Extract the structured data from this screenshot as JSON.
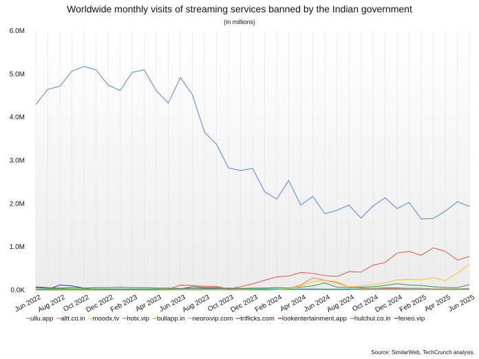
{
  "chart_data": {
    "type": "line",
    "title": "Worldwide monthly visits of streaming services banned by the Indian government",
    "subtitle": "(in millions)",
    "source": "Source: SimilarWeb, TechCrunch analysis.",
    "ylim": [
      0,
      6
    ],
    "yticks": [
      "0.0K",
      "1.0M",
      "2.0M",
      "3.0M",
      "4.0M",
      "5.0M",
      "6.0M"
    ],
    "x": [
      "Jun 2022",
      "Jul 2022",
      "Aug 2022",
      "Sep 2022",
      "Oct 2022",
      "Nov 2022",
      "Dec 2022",
      "Jan 2023",
      "Feb 2023",
      "Mar 2023",
      "Apr 2023",
      "May 2023",
      "Jun 2023",
      "Jul 2023",
      "Aug 2023",
      "Sep 2023",
      "Oct 2023",
      "Nov 2023",
      "Dec 2023",
      "Jan 2024",
      "Feb 2024",
      "Mar 2024",
      "Apr 2024",
      "May 2024",
      "Jun 2024",
      "Jul 2024",
      "Aug 2024",
      "Sep 2024",
      "Oct 2024",
      "Nov 2024",
      "Dec 2024",
      "Jan 2025",
      "Feb 2025",
      "Mar 2025",
      "Apr 2025",
      "May 2025",
      "Jun 2025"
    ],
    "xtick_labels": [
      "Jun 2022",
      "Aug 2022",
      "Oct 2022",
      "Dec 2022",
      "Feb 2023",
      "Apr 2023",
      "Jun 2023",
      "Aug 2023",
      "Oct 2023",
      "Dec 2023",
      "Feb 2024",
      "Apr 2024",
      "Jun 2024",
      "Aug 2024",
      "Oct 2024",
      "Dec 2024",
      "Feb 2025",
      "Apr 2025",
      "Jun 2025"
    ],
    "grid": "vertical",
    "legend": "bottom",
    "series": [
      {
        "name": "ullu.app",
        "color": "#5b8fd9",
        "values": [
          4.3,
          4.65,
          4.72,
          5.07,
          5.18,
          5.1,
          4.75,
          4.62,
          5.04,
          5.1,
          4.62,
          4.33,
          4.92,
          4.53,
          3.66,
          3.38,
          2.83,
          2.77,
          2.82,
          2.28,
          2.11,
          2.54,
          1.97,
          2.17,
          1.77,
          1.85,
          1.97,
          1.67,
          1.95,
          2.14,
          1.89,
          2.03,
          1.65,
          1.66,
          1.83,
          2.05,
          1.94
        ]
      },
      {
        "name": "altt.co.in",
        "color": "#e06055",
        "values": [
          0.01,
          0.01,
          0.01,
          0.01,
          0.01,
          0.01,
          0.01,
          0.01,
          0.01,
          0.01,
          0.01,
          0.02,
          0.12,
          0.11,
          0.09,
          0.09,
          0.03,
          0.08,
          0.15,
          0.23,
          0.31,
          0.33,
          0.41,
          0.39,
          0.34,
          0.32,
          0.43,
          0.42,
          0.58,
          0.64,
          0.86,
          0.9,
          0.81,
          0.98,
          0.9,
          0.7,
          0.78
        ]
      },
      {
        "name": "moodx.tv",
        "color": "#f2c744",
        "values": [
          0,
          0,
          0,
          0,
          0,
          0,
          0,
          0,
          0,
          0,
          0,
          0,
          0,
          0,
          0,
          0,
          0,
          0,
          0,
          0,
          0.01,
          0.03,
          0.1,
          0.2,
          0.23,
          0.2,
          0.08,
          0.1,
          0.13,
          0.17,
          0.24,
          0.25,
          0.24,
          0.29,
          0.22,
          0.4,
          0.6
        ]
      },
      {
        "name": "hotx.vip",
        "color": "#3f9e5e",
        "values": [
          0.08,
          0.06,
          0.05,
          0.06,
          0.05,
          0.06,
          0.06,
          0.07,
          0.06,
          0.06,
          0.05,
          0.05,
          0.04,
          0.04,
          0.04,
          0.04,
          0.05,
          0.04,
          0.05,
          0.05,
          0.06,
          0.05,
          0.07,
          0.1,
          0.17,
          0.07,
          0.06,
          0.07,
          0.08,
          0.11,
          0.15,
          0.12,
          0.11,
          0.08,
          0.06,
          0.06,
          0.13
        ]
      },
      {
        "name": "bullapp.in",
        "color": "#f08a24",
        "values": [
          0,
          0,
          0,
          0,
          0,
          0,
          0,
          0,
          0,
          0,
          0,
          0,
          0,
          0,
          0,
          0,
          0,
          0,
          0,
          0,
          0.01,
          0.04,
          0.12,
          0.29,
          0.23,
          0.17,
          0.08,
          0.05,
          0.04,
          0.04,
          0.04,
          0.04,
          0.04,
          0.03,
          0.03,
          0.03,
          0.04
        ]
      },
      {
        "name": "neonxvip.com",
        "color": "#5fc3b8",
        "values": [
          0.03,
          0.03,
          0.03,
          0.03,
          0.03,
          0.03,
          0.03,
          0.03,
          0.03,
          0.03,
          0.03,
          0.03,
          0.03,
          0.03,
          0.03,
          0.03,
          0.03,
          0.03,
          0.03,
          0.03,
          0.03,
          0.03,
          0.03,
          0.03,
          0.03,
          0.03,
          0.03,
          0.03,
          0.03,
          0.03,
          0.03,
          0.03,
          0.03,
          0.03,
          0.03,
          0.03,
          0.03
        ]
      },
      {
        "name": "triflicks.com",
        "color": "#2a4fa0",
        "values": [
          0.01,
          0.02,
          0.12,
          0.1,
          0.05,
          0.02,
          0.02,
          0.02,
          0.02,
          0.02,
          0.02,
          0.02,
          0.03,
          0.08,
          0.06,
          0.06,
          0.02,
          0.03,
          0.02,
          0.02,
          0.02,
          0.02,
          0.02,
          0.02,
          0.02,
          0.02,
          0.02,
          0.03,
          0.03,
          0.03,
          0.04,
          0.04,
          0.04,
          0.03,
          0.03,
          0.03,
          0.03
        ]
      },
      {
        "name": "lookentertainment.app",
        "color": "#8b1a1a",
        "values": [
          0,
          0,
          0,
          0,
          0,
          0,
          0,
          0,
          0,
          0,
          0,
          0,
          0,
          0,
          0,
          0,
          0,
          0,
          0,
          0,
          0.01,
          0.02,
          0.03,
          0.03,
          0.02,
          0.02,
          0.02,
          0.03,
          0.04,
          0.05,
          0.05,
          0.04,
          0.04,
          0.03,
          0.03,
          0.03,
          0.04
        ]
      },
      {
        "name": "hulchul.co.in",
        "color": "#9a8a1a",
        "values": [
          0.02,
          0.02,
          0.02,
          0.02,
          0.02,
          0.02,
          0.02,
          0.02,
          0.02,
          0.02,
          0.02,
          0.02,
          0.02,
          0.02,
          0.02,
          0.02,
          0.02,
          0.02,
          0.02,
          0.02,
          0.02,
          0.02,
          0.02,
          0.02,
          0.02,
          0.02,
          0.02,
          0.02,
          0.02,
          0.02,
          0.02,
          0.02,
          0.02,
          0.02,
          0.02,
          0.02,
          0.02
        ]
      },
      {
        "name": "feneo.vip",
        "color": "#2f5e4a",
        "values": [
          0.06,
          0.05,
          0.04,
          0.03,
          0.03,
          0.03,
          0.03,
          0.03,
          0.03,
          0.03,
          0.03,
          0.03,
          0.03,
          0.03,
          0.03,
          0.03,
          0.03,
          0.03,
          0.03,
          0.03,
          0.03,
          0.03,
          0.02,
          0.02,
          0.02,
          0.02,
          0.02,
          0.02,
          0.02,
          0.02,
          0.02,
          0.02,
          0.02,
          0.02,
          0.02,
          0.02,
          0.02
        ]
      }
    ]
  }
}
